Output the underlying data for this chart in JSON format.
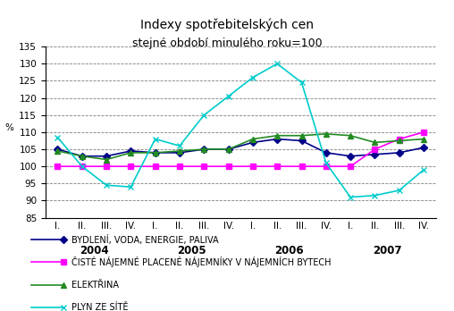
{
  "title_line1": "Indexy spotřebitelských cen",
  "title_line2": "stejné období minulého roku=100",
  "ylabel": "%",
  "ylim": [
    85,
    135
  ],
  "yticks": [
    85,
    90,
    95,
    100,
    105,
    110,
    115,
    120,
    125,
    130,
    135
  ],
  "x_labels": [
    "I.",
    "II.",
    "III.",
    "IV.",
    "I.",
    "II.",
    "III.",
    "IV.",
    "I.",
    "II.",
    "III.",
    "IV.",
    "I.",
    "II.",
    "III.",
    "IV."
  ],
  "year_labels": [
    [
      "2004",
      1.5
    ],
    [
      "2005",
      5.5
    ],
    [
      "2006",
      9.5
    ],
    [
      "2007",
      13.5
    ]
  ],
  "series": [
    {
      "label": "BYDLENÍ, VODA, ENERGIE, PALIVA",
      "color": "#00008B",
      "marker": "D",
      "markersize": 4,
      "values": [
        105.0,
        103.0,
        103.0,
        104.5,
        104.0,
        104.0,
        105.0,
        105.0,
        107.0,
        108.0,
        107.5,
        104.0,
        103.0,
        103.5,
        104.0,
        105.5
      ]
    },
    {
      "label": "ČISTÉ NÁJEMNÉ PLACENÉ NÁJEMNÍKY V NÁJEMNÍCH BYTECH",
      "color": "#FF00FF",
      "marker": "s",
      "markersize": 4,
      "values": [
        100.0,
        100.0,
        100.0,
        100.0,
        100.0,
        100.0,
        100.0,
        100.0,
        100.0,
        100.0,
        100.0,
        100.0,
        100.0,
        105.0,
        108.0,
        110.0
      ]
    },
    {
      "label": "ELEKTŘINA",
      "color": "#228B22",
      "marker": "^",
      "markersize": 4,
      "values": [
        104.5,
        103.0,
        102.0,
        104.0,
        104.0,
        104.5,
        105.0,
        105.0,
        108.0,
        109.0,
        109.0,
        109.5,
        109.0,
        107.0,
        107.5,
        108.0
      ]
    },
    {
      "label": "PLYN ZE SÍTĚ",
      "color": "#00CCCC",
      "marker": "x",
      "markersize": 5,
      "values": [
        108.5,
        100.0,
        94.5,
        94.0,
        108.0,
        106.0,
        115.0,
        120.5,
        126.0,
        130.0,
        124.5,
        101.0,
        91.0,
        91.5,
        93.0,
        99.0
      ]
    }
  ],
  "background_color": "#FFFFFF",
  "grid_color": "#808080",
  "legend_fontsize": 7.0,
  "title_fontsize": 10,
  "axis_fontsize": 7.5,
  "year_fontsize": 8.5
}
